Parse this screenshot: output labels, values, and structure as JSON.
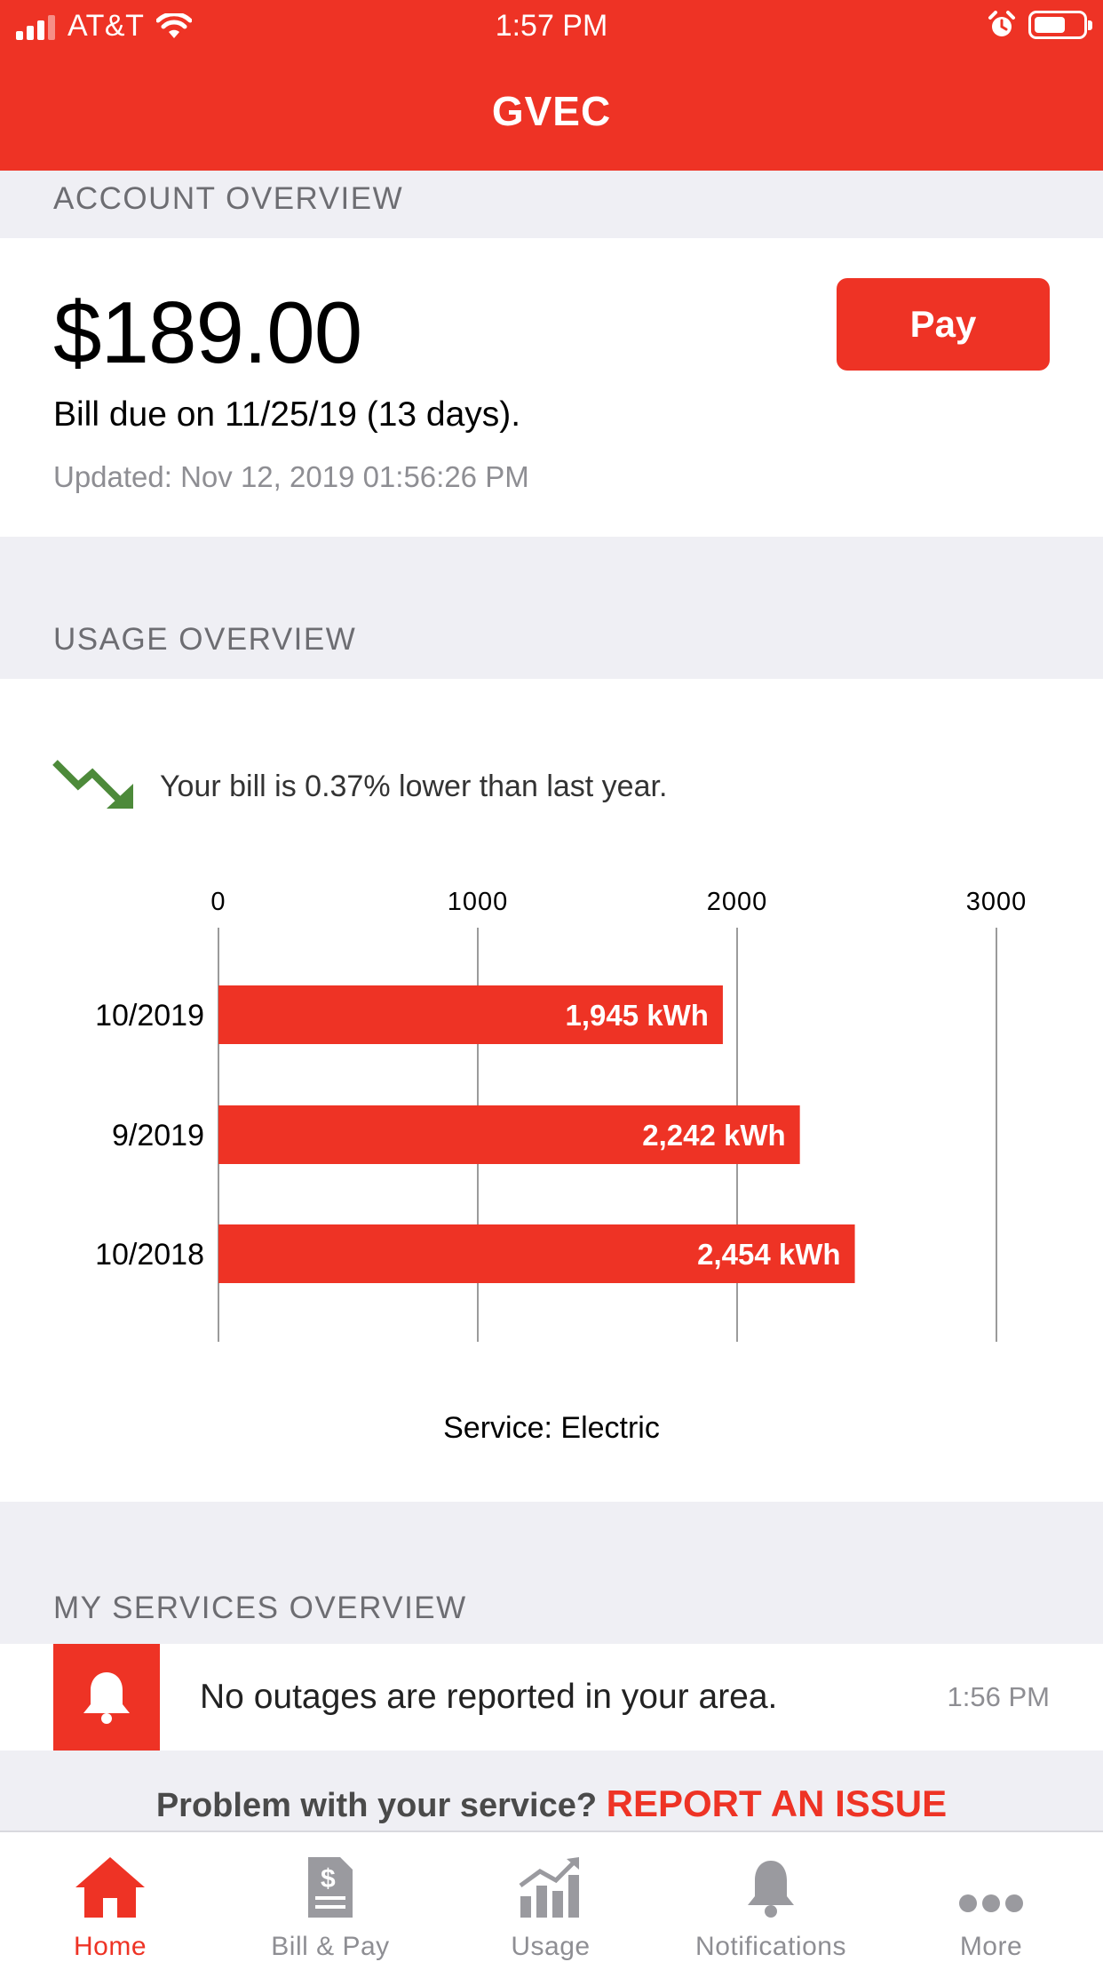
{
  "status_bar": {
    "carrier": "AT&T",
    "time": "1:57 PM"
  },
  "app": {
    "title": "GVEC",
    "accent_color": "#ee3325"
  },
  "account": {
    "section_label": "ACCOUNT OVERVIEW",
    "amount": "$189.00",
    "pay_label": "Pay",
    "bill_due": "Bill due on 11/25/19 (13 days).",
    "updated": "Updated: Nov 12, 2019 01:56:26 PM"
  },
  "usage": {
    "section_label": "USAGE OVERVIEW",
    "trend_icon": "trend-down-icon",
    "trend_color": "#4d8a3a",
    "trend_text": "Your bill is 0.37% lower than last year.",
    "service_label": "Service: Electric"
  },
  "chart_data": {
    "type": "bar",
    "orientation": "horizontal",
    "categories": [
      "10/2019",
      "9/2019",
      "10/2018"
    ],
    "values": [
      1945,
      2242,
      2454
    ],
    "data_labels": [
      "1,945 kWh",
      "2,242 kWh",
      "2,454 kWh"
    ],
    "x_ticks": [
      "0",
      "1000",
      "2000",
      "3000"
    ],
    "xlim": [
      0,
      3000
    ],
    "grid": true,
    "bar_color": "#ee3325"
  },
  "services": {
    "section_label": "MY SERVICES OVERVIEW",
    "alert_icon": "bell-icon",
    "alert_text": "No outages are reported in your area.",
    "alert_time": "1:56 PM",
    "problem_text": "Problem with your service?",
    "report_link": "REPORT AN ISSUE"
  },
  "tabs": [
    {
      "label": "Home",
      "icon": "home-icon",
      "active": true
    },
    {
      "label": "Bill & Pay",
      "icon": "bill-icon",
      "active": false
    },
    {
      "label": "Usage",
      "icon": "usage-chart-icon",
      "active": false
    },
    {
      "label": "Notifications",
      "icon": "bell-icon",
      "active": false
    },
    {
      "label": "More",
      "icon": "more-icon",
      "active": false
    }
  ]
}
